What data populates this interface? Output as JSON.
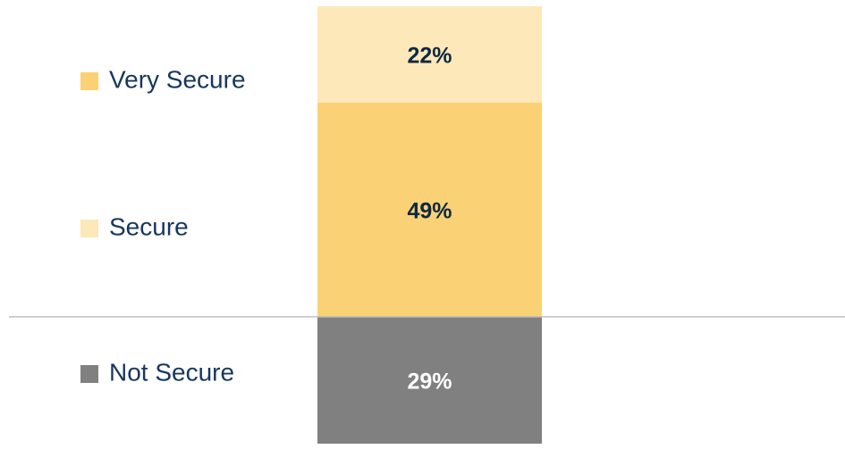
{
  "chart_data": {
    "type": "stacked-bar",
    "categories": [
      null
    ],
    "series": [
      {
        "name": "Very Secure",
        "color": "#fad275",
        "values": [
          49
        ],
        "value_labels": [
          "49%"
        ]
      },
      {
        "name": "Secure",
        "color": "#fde8b9",
        "values": [
          22
        ],
        "value_labels": [
          "22%"
        ]
      },
      {
        "name": "Not Secure",
        "color": "#808080",
        "values": [
          -29
        ],
        "value_labels": [
          "29%"
        ]
      }
    ]
  }
}
